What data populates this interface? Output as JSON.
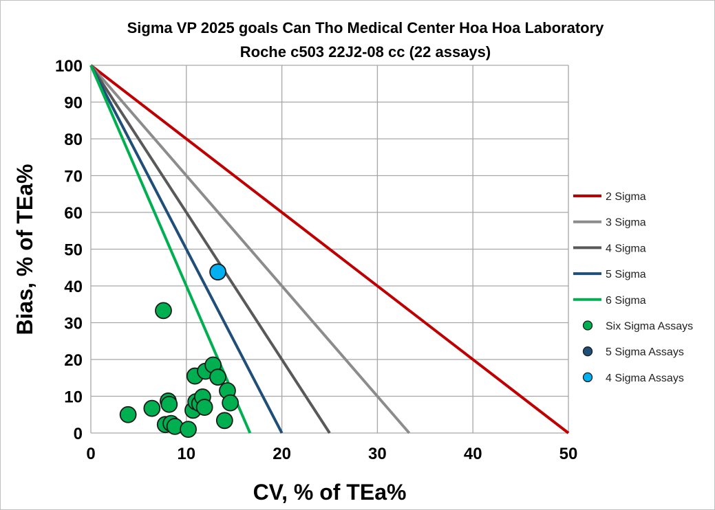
{
  "chart_data": {
    "type": "scatter",
    "title_line1": "Sigma VP 2025 goals Can Tho Medical Center Hoa Hoa Laboratory",
    "title_line2": "Roche c503 22J2-08 cc (22 assays)",
    "xlabel": "CV, % of TEa%",
    "ylabel": "Bias, % of TEa%",
    "xlim": [
      0,
      50
    ],
    "ylim": [
      0,
      100
    ],
    "xticks": [
      "0",
      "10",
      "20",
      "30",
      "40",
      "50"
    ],
    "yticks": [
      "0",
      "10",
      "20",
      "30",
      "40",
      "50",
      "60",
      "70",
      "80",
      "90",
      "100"
    ],
    "grid": true,
    "legend_position": "right",
    "sigma_lines": [
      {
        "name": "2 Sigma",
        "sigma": 2,
        "color": "#c00000"
      },
      {
        "name": "3 Sigma",
        "sigma": 3,
        "color": "#8c8c8c"
      },
      {
        "name": "4 Sigma",
        "sigma": 4,
        "color": "#595959"
      },
      {
        "name": "5 Sigma",
        "sigma": 5,
        "color": "#1f4e79"
      },
      {
        "name": "6 Sigma",
        "sigma": 6,
        "color": "#00b050"
      }
    ],
    "series": [
      {
        "name": "Six Sigma Assays",
        "color": "#00b050",
        "points": [
          {
            "x": 3.9,
            "y": 5.0
          },
          {
            "x": 6.4,
            "y": 6.7
          },
          {
            "x": 7.6,
            "y": 33.3
          },
          {
            "x": 7.8,
            "y": 2.3
          },
          {
            "x": 8.1,
            "y": 8.7
          },
          {
            "x": 8.2,
            "y": 7.8
          },
          {
            "x": 8.4,
            "y": 2.6
          },
          {
            "x": 8.8,
            "y": 1.8
          },
          {
            "x": 10.2,
            "y": 1.0
          },
          {
            "x": 10.7,
            "y": 6.2
          },
          {
            "x": 11.0,
            "y": 8.5
          },
          {
            "x": 10.9,
            "y": 15.5
          },
          {
            "x": 11.4,
            "y": 8.0
          },
          {
            "x": 11.7,
            "y": 9.8
          },
          {
            "x": 11.9,
            "y": 7.0
          },
          {
            "x": 12.0,
            "y": 16.8
          },
          {
            "x": 12.8,
            "y": 18.5
          },
          {
            "x": 13.3,
            "y": 15.2
          },
          {
            "x": 14.0,
            "y": 3.4
          },
          {
            "x": 14.3,
            "y": 11.5
          },
          {
            "x": 14.6,
            "y": 8.2
          }
        ]
      },
      {
        "name": "5 Sigma Assays",
        "color": "#1f4e79",
        "points": []
      },
      {
        "name": "4 Sigma Assays",
        "color": "#00b0f0",
        "points": [
          {
            "x": 13.3,
            "y": 43.8
          }
        ]
      }
    ]
  }
}
